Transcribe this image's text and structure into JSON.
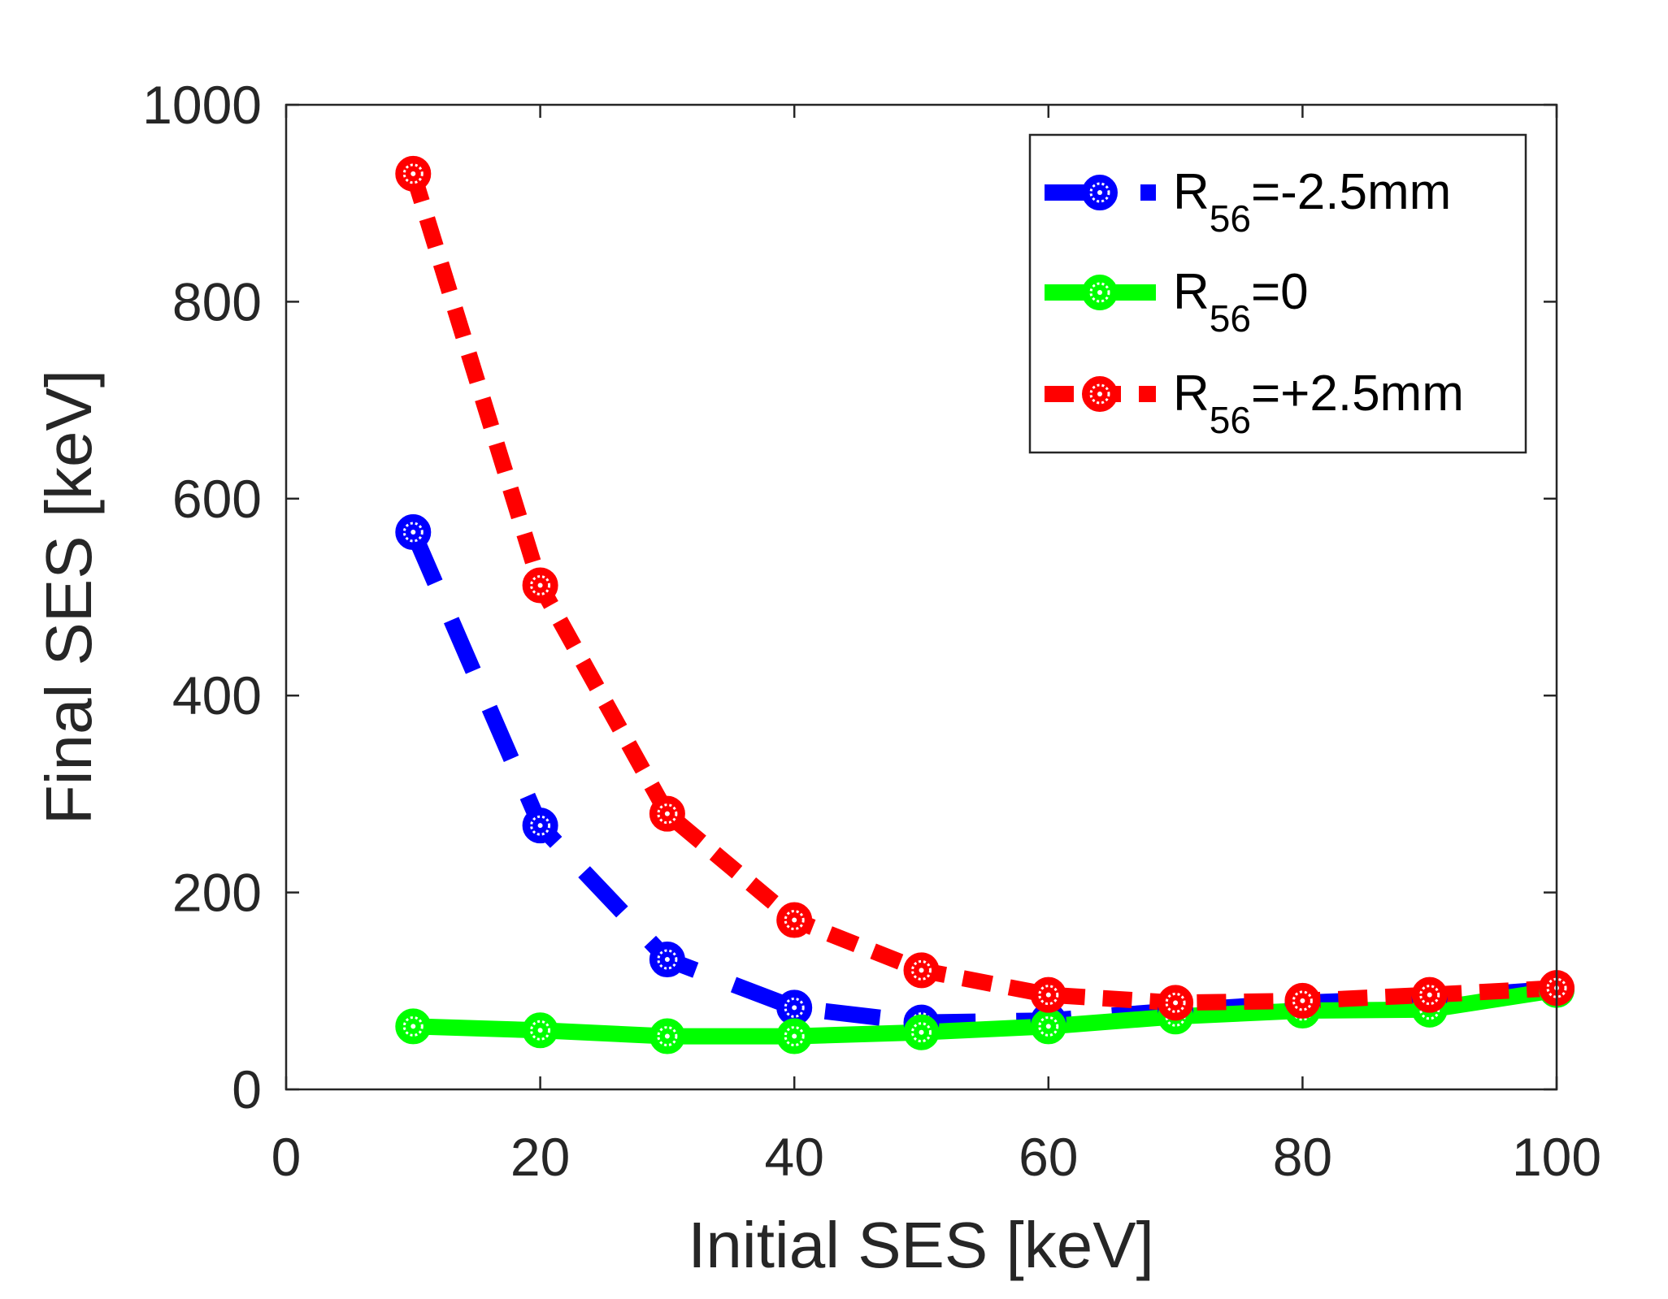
{
  "chart_data": {
    "type": "line",
    "xlabel": "Initial SES [keV]",
    "ylabel": "Final SES [keV]",
    "xlim": [
      0,
      100
    ],
    "ylim": [
      0,
      1000
    ],
    "xticks": [
      0,
      20,
      40,
      60,
      80,
      100
    ],
    "yticks": [
      0,
      200,
      400,
      600,
      800,
      1000
    ],
    "xtick_labels": [
      "0",
      "20",
      "40",
      "60",
      "80",
      "100"
    ],
    "ytick_labels": [
      "0",
      "200",
      "400",
      "600",
      "800",
      "1000"
    ],
    "grid": false,
    "legend_position": "top-right",
    "series": [
      {
        "name": "R56=-2.5mm",
        "label_main": "R",
        "label_sub": "56",
        "label_rest": "=-2.5mm",
        "color": "#0000ff",
        "style": "long-dash",
        "x": [
          10,
          20,
          30,
          40,
          50,
          60,
          70,
          80,
          90,
          100
        ],
        "values": [
          566,
          268,
          132,
          83,
          68,
          70,
          80,
          88,
          93,
          102
        ]
      },
      {
        "name": "R56=0",
        "label_main": "R",
        "label_sub": "56",
        "label_rest": "=0",
        "color": "#00ff00",
        "style": "solid",
        "x": [
          10,
          20,
          30,
          40,
          50,
          60,
          70,
          80,
          90,
          100
        ],
        "values": [
          64,
          60,
          54,
          54,
          58,
          64,
          74,
          80,
          81,
          101
        ]
      },
      {
        "name": "R56=+2.5mm",
        "label_main": "R",
        "label_sub": "56",
        "label_rest": "=+2.5mm",
        "color": "#ff0000",
        "style": "short-dash",
        "x": [
          10,
          20,
          30,
          40,
          50,
          60,
          70,
          80,
          90,
          100
        ],
        "values": [
          930,
          512,
          280,
          172,
          121,
          96,
          88,
          90,
          96,
          103
        ]
      }
    ]
  }
}
